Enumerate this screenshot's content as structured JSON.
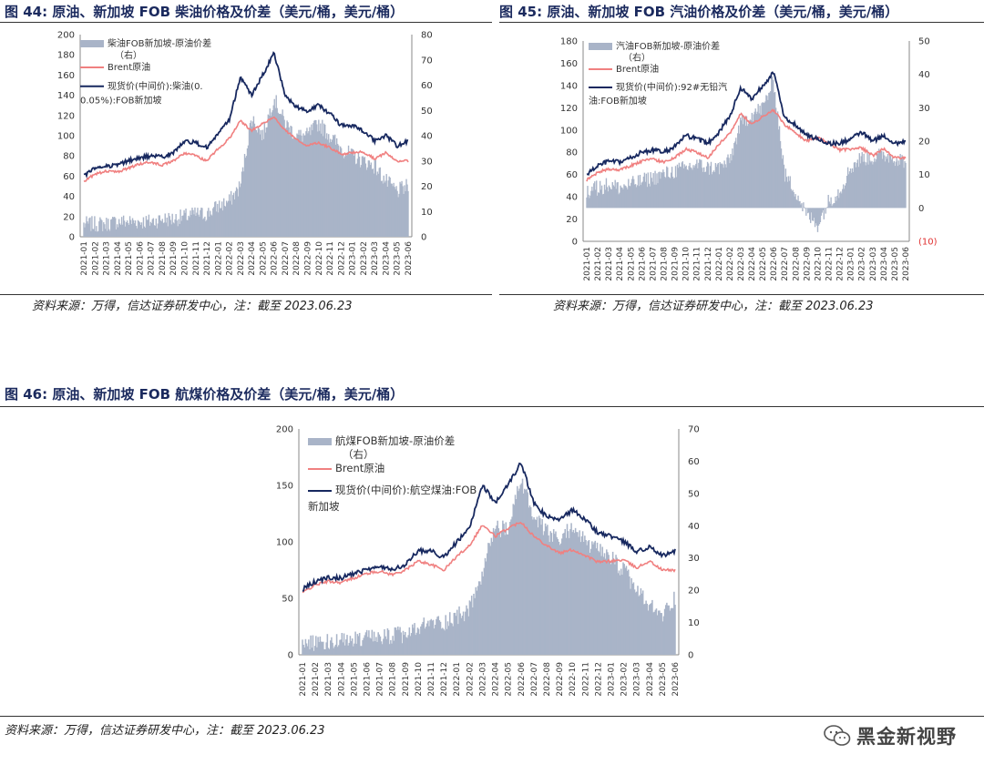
{
  "figures": [
    {
      "number_label": "图 44:",
      "title": "原油、新加坡 FOB 柴油价格及价差（美元/桶，美元/桶）",
      "source": "资料来源：万得，信达证券研发中心，注：截至 2023.06.23"
    },
    {
      "number_label": "图 45:",
      "title": "原油、新加坡 FOB 汽油价格及价差（美元/桶，美元/桶）",
      "source": "资料来源：万得，信达证券研发中心，注：截至 2023.06.23"
    },
    {
      "number_label": "图 46:",
      "title": "原油、新加坡 FOB 航煤价格及价差（美元/桶，美元/桶）",
      "source": "资料来源：万得，信达证券研发中心，注：截至 2023.06.23"
    }
  ],
  "watermark": {
    "text": "黑金新视野",
    "icon": "wechat-icon"
  },
  "chart_data": [
    {
      "type": "area",
      "x_tick_labels": [
        "2021-01",
        "2021-02",
        "2021-03",
        "2021-04",
        "2021-05",
        "2021-06",
        "2021-07",
        "2021-08",
        "2021-09",
        "2021-10",
        "2021-11",
        "2021-12",
        "2022-01",
        "2022-02",
        "2022-03",
        "2022-04",
        "2022-05",
        "2022-06",
        "2022-07",
        "2022-08",
        "2022-09",
        "2022-10",
        "2022-11",
        "2022-12",
        "2023-01",
        "2023-02",
        "2023-03",
        "2023-04",
        "2023-05",
        "2023-06"
      ],
      "y_left": {
        "range": [
          0,
          200
        ],
        "ticks": [
          "0",
          "20",
          "40",
          "60",
          "80",
          "100",
          "120",
          "140",
          "160",
          "180",
          "200"
        ]
      },
      "y_right": {
        "range": [
          0,
          80
        ],
        "ticks": [
          "0",
          "10",
          "20",
          "30",
          "40",
          "50",
          "60",
          "70",
          "80"
        ]
      },
      "legend": [
        "柴油FOB新加坡-原油价差",
        "（右）",
        "Brent原油",
        "现货价(中间价):柴油(0.",
        "0.05%):FOB新加坡"
      ],
      "series": [
        {
          "name": "柴油FOB新加坡-原油价差（右）",
          "axis": "right",
          "color": "#a9b4c8",
          "values": [
            5,
            5,
            5,
            6,
            6,
            6,
            6,
            7,
            7,
            8,
            9,
            9,
            12,
            14,
            20,
            47,
            40,
            55,
            45,
            40,
            40,
            45,
            40,
            35,
            32,
            30,
            28,
            22,
            18,
            20
          ]
        },
        {
          "name": "Brent原油",
          "axis": "left",
          "color": "#f08080",
          "values": [
            55,
            62,
            65,
            64,
            68,
            72,
            74,
            71,
            75,
            83,
            80,
            75,
            87,
            97,
            115,
            105,
            112,
            118,
            105,
            97,
            90,
            93,
            88,
            82,
            83,
            84,
            77,
            83,
            75,
            75
          ]
        },
        {
          "name": "现货价(中间价):柴油(0.05%):FOB新加坡",
          "axis": "left",
          "color": "#17285f",
          "values": [
            60,
            68,
            70,
            71,
            75,
            78,
            80,
            79,
            83,
            95,
            93,
            88,
            102,
            115,
            158,
            140,
            160,
            182,
            140,
            128,
            125,
            130,
            122,
            110,
            110,
            105,
            95,
            100,
            90,
            95
          ]
        }
      ]
    },
    {
      "type": "area",
      "x_tick_labels": [
        "2021-01",
        "2021-02",
        "2021-03",
        "2021-04",
        "2021-05",
        "2021-06",
        "2021-07",
        "2021-08",
        "2021-09",
        "2021-10",
        "2021-11",
        "2021-12",
        "2022-01",
        "2022-02",
        "2022-03",
        "2022-04",
        "2022-05",
        "2022-06",
        "2022-07",
        "2022-08",
        "2022-09",
        "2022-10",
        "2022-11",
        "2022-12",
        "2023-01",
        "2023-02",
        "2023-03",
        "2023-04",
        "2023-05",
        "2023-06"
      ],
      "y_left": {
        "range": [
          0,
          180
        ],
        "ticks": [
          "0",
          "20",
          "40",
          "60",
          "80",
          "100",
          "120",
          "140",
          "160",
          "180"
        ]
      },
      "y_right": {
        "range": [
          -10,
          50
        ],
        "ticks": [
          "(10)",
          "0",
          "10",
          "20",
          "30",
          "40",
          "50"
        ]
      },
      "legend": [
        "汽油FOB新加坡-原油价差",
        "（右）",
        "Brent原油",
        "现货价(中间价):92#无铅汽",
        "油:FOB新加坡"
      ],
      "series": [
        {
          "name": "汽油FOB新加坡-原油价差（右）",
          "axis": "right",
          "color": "#a9b4c8",
          "values": [
            5,
            6,
            7,
            6,
            7,
            8,
            9,
            10,
            11,
            12,
            13,
            12,
            12,
            14,
            25,
            28,
            30,
            38,
            10,
            5,
            -2,
            -5,
            2,
            5,
            12,
            15,
            15,
            16,
            15,
            14
          ]
        },
        {
          "name": "Brent原油",
          "axis": "left",
          "color": "#f08080",
          "values": [
            55,
            62,
            65,
            64,
            68,
            72,
            74,
            71,
            75,
            83,
            80,
            75,
            87,
            97,
            115,
            105,
            112,
            118,
            105,
            97,
            90,
            93,
            88,
            82,
            83,
            84,
            77,
            83,
            75,
            75
          ]
        },
        {
          "name": "现货价(中间价):92#无铅汽油:FOB新加坡",
          "axis": "left",
          "color": "#17285f",
          "values": [
            60,
            68,
            72,
            71,
            75,
            80,
            82,
            80,
            85,
            95,
            92,
            88,
            98,
            112,
            138,
            128,
            140,
            152,
            110,
            105,
            95,
            92,
            88,
            88,
            92,
            98,
            90,
            95,
            88,
            90
          ]
        }
      ]
    },
    {
      "type": "area",
      "x_tick_labels": [
        "2021-01",
        "2021-02",
        "2021-03",
        "2021-04",
        "2021-05",
        "2021-06",
        "2021-07",
        "2021-08",
        "2021-09",
        "2021-10",
        "2021-11",
        "2021-12",
        "2022-01",
        "2022-02",
        "2022-03",
        "2022-04",
        "2022-05",
        "2022-06",
        "2022-07",
        "2022-08",
        "2022-09",
        "2022-10",
        "2022-11",
        "2022-12",
        "2023-01",
        "2023-02",
        "2023-03",
        "2023-04",
        "2023-05",
        "2023-06"
      ],
      "y_left": {
        "range": [
          0,
          200
        ],
        "ticks": [
          "0",
          "50",
          "100",
          "150",
          "200"
        ]
      },
      "y_right": {
        "range": [
          0,
          70
        ],
        "ticks": [
          "0",
          "10",
          "20",
          "30",
          "40",
          "50",
          "60",
          "70"
        ]
      },
      "legend": [
        "航煤FOB新加坡-原油价差",
        "（右）",
        "Brent原油",
        "现货价(中间价):航空煤油:FOB",
        "新加坡"
      ],
      "series": [
        {
          "name": "航煤FOB新加坡-原油价差（右）",
          "axis": "right",
          "color": "#a9b4c8",
          "values": [
            4,
            4,
            4,
            4,
            5,
            5,
            5,
            6,
            6,
            8,
            10,
            10,
            12,
            14,
            25,
            40,
            38,
            55,
            42,
            38,
            35,
            40,
            35,
            32,
            30,
            26,
            20,
            15,
            12,
            18
          ]
        },
        {
          "name": "Brent原油",
          "axis": "left",
          "color": "#f08080",
          "values": [
            55,
            62,
            65,
            64,
            68,
            72,
            74,
            71,
            75,
            83,
            80,
            75,
            87,
            97,
            115,
            105,
            112,
            118,
            105,
            97,
            90,
            93,
            88,
            82,
            83,
            84,
            77,
            83,
            75,
            75
          ]
        },
        {
          "name": "现货价(中间价):航空煤油:FOB新加坡",
          "axis": "left",
          "color": "#17285f",
          "values": [
            58,
            65,
            68,
            68,
            72,
            75,
            78,
            76,
            80,
            92,
            92,
            86,
            100,
            112,
            150,
            135,
            150,
            170,
            135,
            122,
            120,
            128,
            120,
            108,
            105,
            100,
            92,
            95,
            88,
            92
          ]
        }
      ]
    }
  ]
}
